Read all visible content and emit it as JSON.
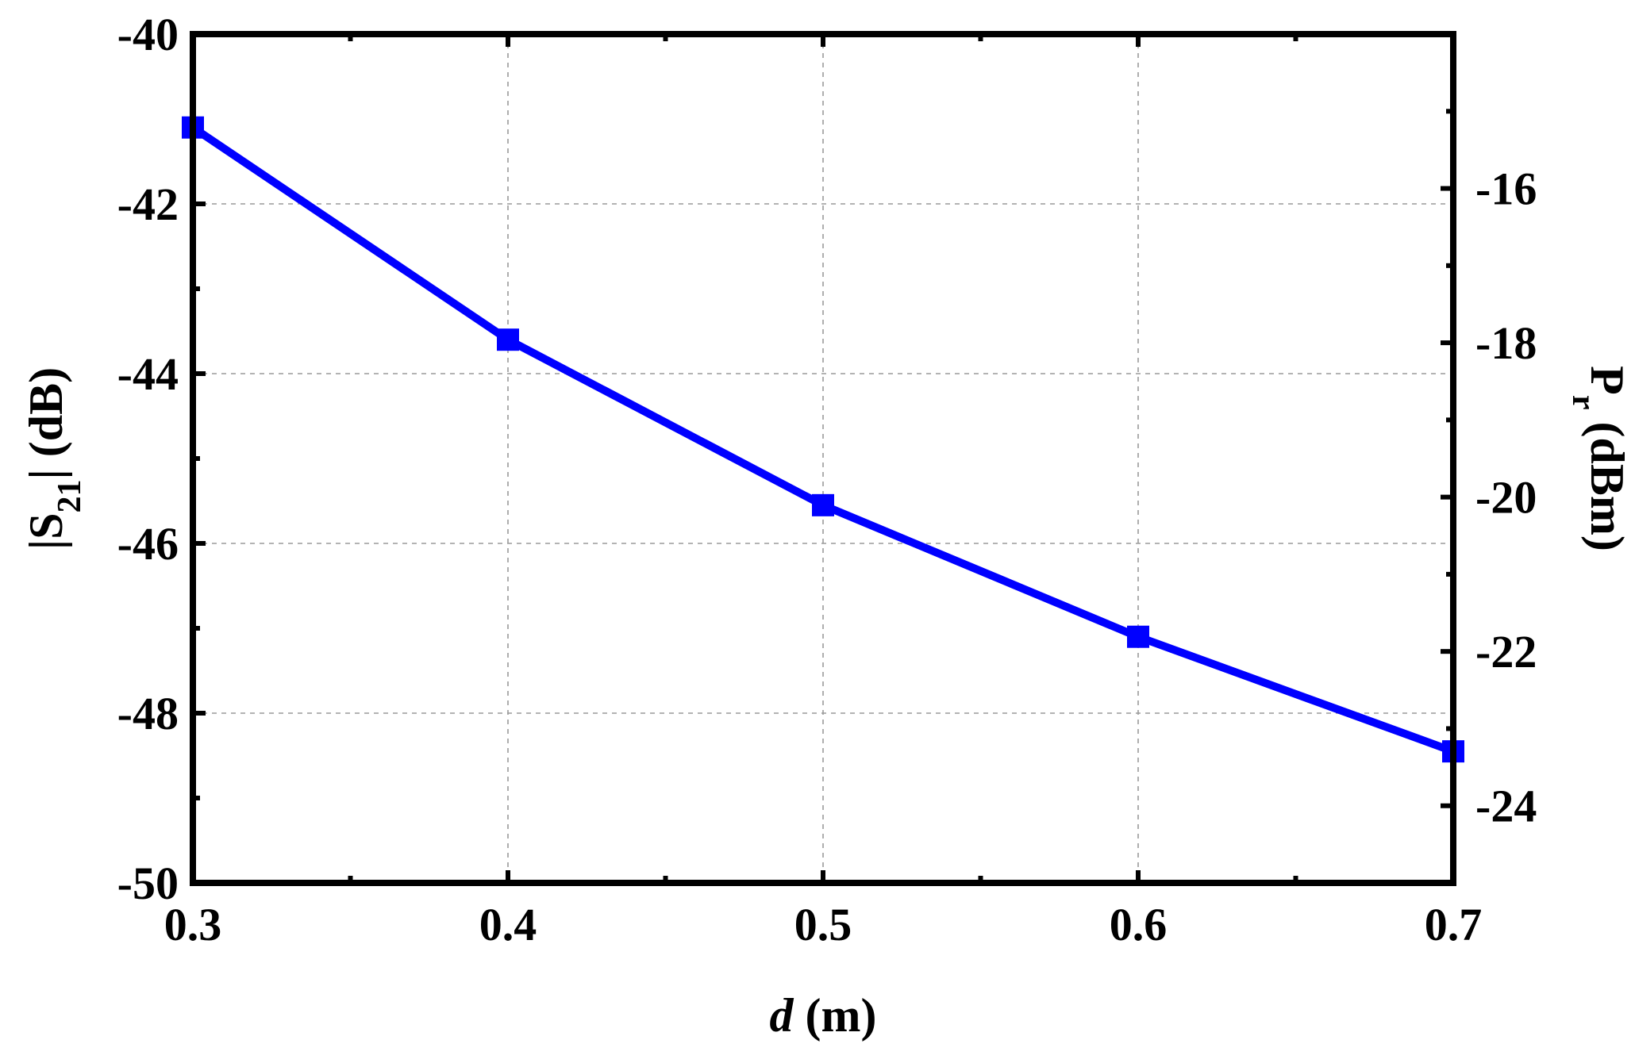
{
  "chart_data": {
    "type": "line",
    "title": "",
    "x": [
      0.3,
      0.4,
      0.5,
      0.6,
      0.7
    ],
    "xlim": [
      0.3,
      0.7
    ],
    "x_ticks": [
      "0.3",
      "0.4",
      "0.5",
      "0.6",
      "0.7"
    ],
    "xlabel": {
      "italic_part": "d",
      "rest": " (m)"
    },
    "y_left": {
      "label_prefix": "|S",
      "label_sub": "21",
      "label_suffix": "| (dB)",
      "ylim": [
        -50,
        -40
      ],
      "ticks": [
        "-40",
        "-42",
        "-44",
        "-46",
        "-48",
        "-50"
      ],
      "tick_values": [
        -40,
        -42,
        -44,
        -46,
        -48,
        -50
      ]
    },
    "y_right": {
      "label_prefix": "P",
      "label_sub": "r",
      "label_suffix": " (dBm)",
      "ylim": [
        -25,
        -14
      ],
      "ticks": [
        "-16",
        "-18",
        "-20",
        "-22",
        "-24"
      ],
      "tick_values": [
        -16,
        -18,
        -20,
        -22,
        -24
      ]
    },
    "series": [
      {
        "values": [
          -41.1,
          -43.6,
          -45.55,
          -47.1,
          -48.45
        ],
        "color": "#0000ff",
        "marker": "square",
        "axis": "left"
      }
    ],
    "grid": true,
    "legend": "none"
  }
}
